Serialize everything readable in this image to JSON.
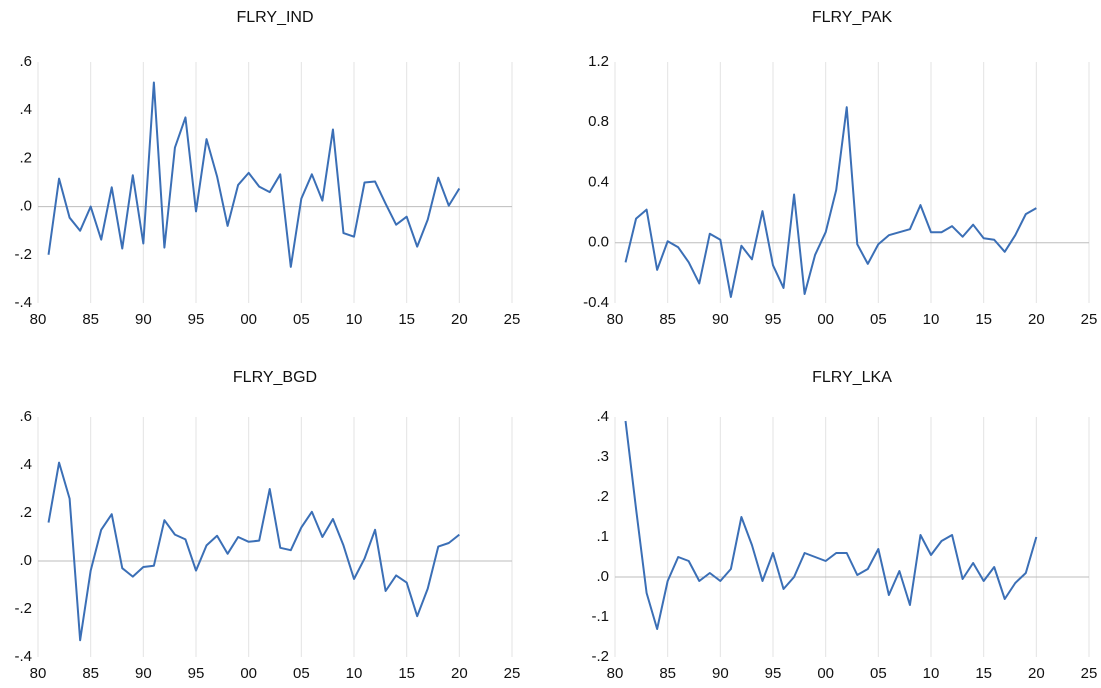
{
  "chart_data": [
    {
      "type": "line",
      "title": "FLRY_IND",
      "color": "#3b6fb6",
      "grid": "x",
      "zero_line": true,
      "x": [
        1981,
        1982,
        1983,
        1984,
        1985,
        1986,
        1987,
        1988,
        1989,
        1990,
        1991,
        1992,
        1993,
        1994,
        1995,
        1996,
        1997,
        1998,
        1999,
        2000,
        2001,
        2002,
        2003,
        2004,
        2005,
        2006,
        2007,
        2008,
        2009,
        2010,
        2011,
        2012,
        2013,
        2014,
        2015,
        2016,
        2017,
        2018,
        2019,
        2020
      ],
      "values": [
        -0.2,
        0.116,
        -0.046,
        -0.1,
        0.0,
        -0.137,
        0.08,
        -0.174,
        0.13,
        -0.153,
        0.515,
        -0.17,
        0.245,
        0.37,
        -0.02,
        0.28,
        0.125,
        -0.08,
        0.09,
        0.14,
        0.083,
        0.06,
        0.134,
        -0.25,
        0.033,
        0.134,
        0.025,
        0.32,
        -0.11,
        -0.125,
        0.1,
        0.104,
        0.012,
        -0.075,
        -0.042,
        -0.166,
        -0.054,
        0.12,
        0.004,
        0.075
      ],
      "xlim": [
        1980,
        2025
      ],
      "xticks": [
        {
          "value": 1980,
          "label": "80"
        },
        {
          "value": 1985,
          "label": "85"
        },
        {
          "value": 1990,
          "label": "90"
        },
        {
          "value": 1995,
          "label": "95"
        },
        {
          "value": 2000,
          "label": "00"
        },
        {
          "value": 2005,
          "label": "05"
        },
        {
          "value": 2010,
          "label": "10"
        },
        {
          "value": 2015,
          "label": "15"
        },
        {
          "value": 2020,
          "label": "20"
        },
        {
          "value": 2025,
          "label": "25"
        }
      ],
      "ylim": [
        -0.4,
        0.6
      ],
      "yticks": [
        {
          "value": -0.4,
          "label": "-.4"
        },
        {
          "value": -0.2,
          "label": "-.2"
        },
        {
          "value": 0,
          "label": ".0"
        },
        {
          "value": 0.2,
          "label": ".2"
        },
        {
          "value": 0.4,
          "label": ".4"
        },
        {
          "value": 0.6,
          "label": ".6"
        }
      ]
    },
    {
      "type": "line",
      "title": "FLRY_PAK",
      "color": "#3b6fb6",
      "grid": "x",
      "zero_line": true,
      "x": [
        1981,
        1982,
        1983,
        1984,
        1985,
        1986,
        1987,
        1988,
        1989,
        1990,
        1991,
        1992,
        1993,
        1994,
        1995,
        1996,
        1997,
        1998,
        1999,
        2000,
        2001,
        2002,
        2003,
        2004,
        2005,
        2006,
        2007,
        2008,
        2009,
        2010,
        2011,
        2012,
        2013,
        2014,
        2015,
        2016,
        2017,
        2018,
        2019,
        2020
      ],
      "values": [
        -0.13,
        0.16,
        0.22,
        -0.18,
        0.01,
        -0.03,
        -0.13,
        -0.27,
        0.06,
        0.02,
        -0.36,
        -0.02,
        -0.11,
        0.21,
        -0.15,
        -0.3,
        0.32,
        -0.34,
        -0.08,
        0.07,
        0.35,
        0.9,
        -0.01,
        -0.14,
        -0.01,
        0.05,
        0.07,
        0.09,
        0.25,
        0.07,
        0.07,
        0.11,
        0.04,
        0.12,
        0.03,
        0.02,
        -0.06,
        0.05,
        0.19,
        0.23
      ],
      "xlim": [
        1980,
        2025
      ],
      "xticks": [
        {
          "value": 1980,
          "label": "80"
        },
        {
          "value": 1985,
          "label": "85"
        },
        {
          "value": 1990,
          "label": "90"
        },
        {
          "value": 1995,
          "label": "95"
        },
        {
          "value": 2000,
          "label": "00"
        },
        {
          "value": 2005,
          "label": "05"
        },
        {
          "value": 2010,
          "label": "10"
        },
        {
          "value": 2015,
          "label": "15"
        },
        {
          "value": 2020,
          "label": "20"
        },
        {
          "value": 2025,
          "label": "25"
        }
      ],
      "ylim": [
        -0.4,
        1.2
      ],
      "yticks": [
        -0.4,
        {
          "value": 0,
          "label": "0.0"
        },
        0.4,
        0.8,
        1.2
      ]
    },
    {
      "type": "line",
      "title": "FLRY_BGD",
      "color": "#3b6fb6",
      "grid": "x",
      "zero_line": true,
      "x": [
        1981,
        1982,
        1983,
        1984,
        1985,
        1986,
        1987,
        1988,
        1989,
        1990,
        1991,
        1992,
        1993,
        1994,
        1995,
        1996,
        1997,
        1998,
        1999,
        2000,
        2001,
        2002,
        2003,
        2004,
        2005,
        2006,
        2007,
        2008,
        2009,
        2010,
        2011,
        2012,
        2013,
        2014,
        2015,
        2016,
        2017,
        2018,
        2019,
        2020
      ],
      "values": [
        0.16,
        0.41,
        0.26,
        -0.33,
        -0.04,
        0.13,
        0.195,
        -0.03,
        -0.065,
        -0.025,
        -0.02,
        0.17,
        0.11,
        0.09,
        -0.04,
        0.065,
        0.105,
        0.03,
        0.1,
        0.08,
        0.085,
        0.3,
        0.055,
        0.045,
        0.14,
        0.205,
        0.1,
        0.175,
        0.065,
        -0.075,
        0.01,
        0.13,
        -0.125,
        -0.06,
        -0.09,
        -0.23,
        -0.115,
        0.06,
        0.075,
        0.11
      ],
      "xlim": [
        1980,
        2025
      ],
      "xticks": [
        {
          "value": 1980,
          "label": "80"
        },
        {
          "value": 1985,
          "label": "85"
        },
        {
          "value": 1990,
          "label": "90"
        },
        {
          "value": 1995,
          "label": "95"
        },
        {
          "value": 2000,
          "label": "00"
        },
        {
          "value": 2005,
          "label": "05"
        },
        {
          "value": 2010,
          "label": "10"
        },
        {
          "value": 2015,
          "label": "15"
        },
        {
          "value": 2020,
          "label": "20"
        },
        {
          "value": 2025,
          "label": "25"
        }
      ],
      "ylim": [
        -0.4,
        0.6
      ],
      "yticks": [
        {
          "value": -0.4,
          "label": "-.4"
        },
        {
          "value": -0.2,
          "label": "-.2"
        },
        {
          "value": 0,
          "label": ".0"
        },
        {
          "value": 0.2,
          "label": ".2"
        },
        {
          "value": 0.4,
          "label": ".4"
        },
        {
          "value": 0.6,
          "label": ".6"
        }
      ]
    },
    {
      "type": "line",
      "title": "FLRY_LKA",
      "color": "#3b6fb6",
      "grid": "x",
      "zero_line": true,
      "x": [
        1981,
        1982,
        1983,
        1984,
        1985,
        1986,
        1987,
        1988,
        1989,
        1990,
        1991,
        1992,
        1993,
        1994,
        1995,
        1996,
        1997,
        1998,
        1999,
        2000,
        2001,
        2002,
        2003,
        2004,
        2005,
        2006,
        2007,
        2008,
        2009,
        2010,
        2011,
        2012,
        2013,
        2014,
        2015,
        2016,
        2017,
        2018,
        2019,
        2020
      ],
      "values": [
        0.39,
        0.17,
        -0.04,
        -0.13,
        -0.01,
        0.05,
        0.04,
        -0.01,
        0.01,
        -0.01,
        0.02,
        0.15,
        0.08,
        -0.01,
        0.06,
        -0.03,
        0.0,
        0.06,
        0.05,
        0.04,
        0.06,
        0.06,
        0.005,
        0.02,
        0.07,
        -0.045,
        0.015,
        -0.07,
        0.105,
        0.055,
        0.09,
        0.105,
        -0.005,
        0.035,
        -0.01,
        0.025,
        -0.055,
        -0.015,
        0.01,
        0.1
      ],
      "xlim": [
        1980,
        2025
      ],
      "xticks": [
        {
          "value": 1980,
          "label": "80"
        },
        {
          "value": 1985,
          "label": "85"
        },
        {
          "value": 1990,
          "label": "90"
        },
        {
          "value": 1995,
          "label": "95"
        },
        {
          "value": 2000,
          "label": "00"
        },
        {
          "value": 2005,
          "label": "05"
        },
        {
          "value": 2010,
          "label": "10"
        },
        {
          "value": 2015,
          "label": "15"
        },
        {
          "value": 2020,
          "label": "20"
        },
        {
          "value": 2025,
          "label": "25"
        }
      ],
      "ylim": [
        -0.2,
        0.4
      ],
      "yticks": [
        {
          "value": -0.2,
          "label": "-.2"
        },
        {
          "value": -0.1,
          "label": "-.1"
        },
        {
          "value": 0,
          "label": ".0"
        },
        {
          "value": 0.1,
          "label": ".1"
        },
        {
          "value": 0.2,
          "label": ".2"
        },
        {
          "value": 0.3,
          "label": ".3"
        },
        {
          "value": 0.4,
          "label": ".4"
        }
      ]
    }
  ]
}
